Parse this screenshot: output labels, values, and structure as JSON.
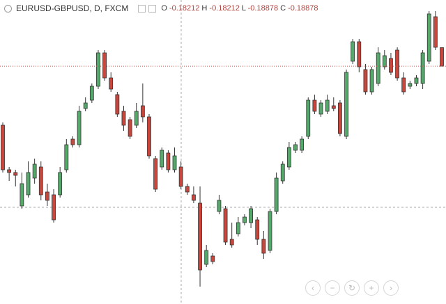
{
  "chart_data": {
    "type": "candlestick",
    "title": "EURUSD-GBPUSD, D, FXCM",
    "ohlc_labels": [
      "O",
      "H",
      "L",
      "C"
    ],
    "up_color": "#53a86a",
    "down_color": "#c9463d",
    "last_price_color": "#d9534f",
    "ylim": [
      -0.27425,
      -0.165
    ],
    "open": [
      -0.21,
      -0.226,
      -0.227,
      -0.239,
      -0.235,
      -0.229,
      -0.225,
      -0.234,
      -0.235,
      -0.235,
      -0.226,
      -0.215,
      -0.217,
      -0.204,
      -0.201,
      -0.196,
      -0.184,
      -0.193,
      -0.199,
      -0.205,
      -0.208,
      -0.21,
      -0.203,
      -0.207,
      -0.222,
      -0.225,
      -0.22,
      -0.226,
      -0.225,
      -0.232,
      -0.235,
      -0.238,
      -0.26,
      -0.257,
      -0.241,
      -0.24,
      -0.251,
      -0.249,
      -0.245,
      -0.245,
      -0.244,
      -0.251,
      -0.255,
      -0.241,
      -0.23,
      -0.225,
      -0.219,
      -0.219,
      -0.214,
      -0.201,
      -0.206,
      -0.205,
      -0.203,
      -0.202,
      -0.214,
      -0.187,
      -0.18,
      -0.19,
      -0.198,
      -0.195,
      -0.189,
      -0.186,
      -0.183,
      -0.193,
      -0.196,
      -0.195,
      -0.195,
      -0.187,
      -0.171,
      -0.18212
    ],
    "high": [
      -0.209,
      -0.225,
      -0.226,
      -0.227,
      -0.223,
      -0.222,
      -0.223,
      -0.231,
      -0.233,
      -0.225,
      -0.215,
      -0.214,
      -0.203,
      -0.2,
      -0.195,
      -0.183,
      -0.183,
      -0.191,
      -0.198,
      -0.203,
      -0.207,
      -0.202,
      -0.195,
      -0.206,
      -0.221,
      -0.218,
      -0.219,
      -0.218,
      -0.223,
      -0.231,
      -0.232,
      -0.232,
      -0.253,
      -0.256,
      -0.235,
      -0.239,
      -0.245,
      -0.243,
      -0.242,
      -0.239,
      -0.243,
      -0.248,
      -0.24,
      -0.227,
      -0.223,
      -0.216,
      -0.216,
      -0.214,
      -0.2,
      -0.199,
      -0.201,
      -0.199,
      -0.2,
      -0.201,
      -0.19,
      -0.179,
      -0.179,
      -0.188,
      -0.189,
      -0.182,
      -0.183,
      -0.184,
      -0.182,
      -0.191,
      -0.194,
      -0.192,
      -0.183,
      -0.169,
      -0.169,
      -0.18212
    ],
    "low": [
      -0.227,
      -0.23,
      -0.232,
      -0.24,
      -0.236,
      -0.231,
      -0.237,
      -0.239,
      -0.245,
      -0.236,
      -0.227,
      -0.218,
      -0.218,
      -0.205,
      -0.202,
      -0.197,
      -0.194,
      -0.198,
      -0.207,
      -0.212,
      -0.215,
      -0.211,
      -0.209,
      -0.222,
      -0.234,
      -0.226,
      -0.227,
      -0.227,
      -0.233,
      -0.235,
      -0.238,
      -0.268,
      -0.261,
      -0.26,
      -0.242,
      -0.253,
      -0.254,
      -0.25,
      -0.246,
      -0.247,
      -0.253,
      -0.258,
      -0.256,
      -0.242,
      -0.231,
      -0.226,
      -0.22,
      -0.22,
      -0.215,
      -0.206,
      -0.207,
      -0.206,
      -0.205,
      -0.214,
      -0.215,
      -0.188,
      -0.191,
      -0.199,
      -0.199,
      -0.196,
      -0.19,
      -0.192,
      -0.194,
      -0.199,
      -0.197,
      -0.196,
      -0.197,
      -0.188,
      -0.183,
      -0.18878
    ],
    "close": [
      -0.226,
      -0.227,
      -0.228,
      -0.231,
      -0.227,
      -0.224,
      -0.235,
      -0.237,
      -0.244,
      -0.227,
      -0.217,
      -0.217,
      -0.205,
      -0.202,
      -0.196,
      -0.184,
      -0.193,
      -0.197,
      -0.206,
      -0.21,
      -0.214,
      -0.205,
      -0.207,
      -0.221,
      -0.233,
      -0.219,
      -0.226,
      -0.221,
      -0.232,
      -0.234,
      -0.237,
      -0.262,
      -0.255,
      -0.259,
      -0.237,
      -0.252,
      -0.253,
      -0.245,
      -0.243,
      -0.24,
      -0.251,
      -0.256,
      -0.241,
      -0.229,
      -0.224,
      -0.218,
      -0.217,
      -0.215,
      -0.201,
      -0.205,
      -0.202,
      -0.201,
      -0.204,
      -0.213,
      -0.191,
      -0.18,
      -0.189,
      -0.198,
      -0.19,
      -0.184,
      -0.185,
      -0.191,
      -0.193,
      -0.198,
      -0.195,
      -0.193,
      -0.184,
      -0.17,
      -0.182,
      -0.18878
    ]
  }
}
